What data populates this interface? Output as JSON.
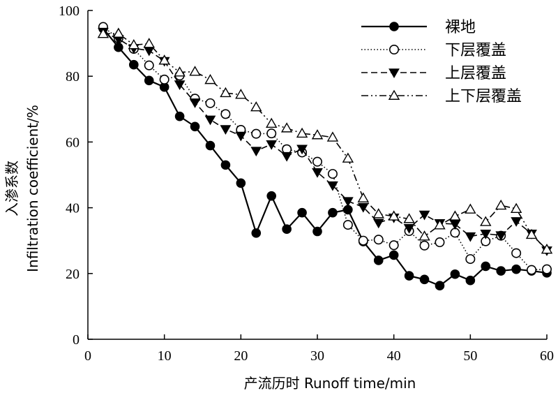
{
  "chart_data": {
    "type": "line",
    "xlabel": "产流历时  Runoff time/min",
    "ylabel_cn": "入渗系数",
    "ylabel_en": "Infiltration coefficient/%",
    "xlim": [
      0,
      60
    ],
    "ylim": [
      0,
      100
    ],
    "x_ticks": [
      0,
      10,
      20,
      30,
      40,
      50,
      60
    ],
    "y_ticks": [
      0,
      20,
      40,
      60,
      80,
      100
    ],
    "grid": false,
    "legend_position": "top-right",
    "x": [
      2,
      4,
      6,
      8,
      10,
      12,
      14,
      16,
      18,
      20,
      22,
      24,
      26,
      28,
      30,
      32,
      34,
      36,
      38,
      40,
      42,
      44,
      46,
      48,
      50,
      52,
      54,
      56,
      58,
      60
    ],
    "series": [
      {
        "name": "裸地",
        "marker": "circle-filled",
        "line": "solid",
        "values": [
          94.5,
          88.8,
          83.5,
          78.7,
          76.7,
          67.8,
          64.7,
          58.9,
          53.0,
          47.5,
          32.3,
          43.6,
          33.5,
          38.5,
          32.8,
          38.5,
          39.4,
          29.7,
          24.0,
          25.6,
          19.3,
          18.2,
          16.3,
          19.8,
          17.9,
          22.2,
          20.8,
          21.3,
          20.8,
          20.2
        ]
      },
      {
        "name": "下层覆盖",
        "marker": "circle-open",
        "line": "dotted",
        "values": [
          95.0,
          91.5,
          88.3,
          83.3,
          79.0,
          80.2,
          73.2,
          71.8,
          68.5,
          63.7,
          62.5,
          62.6,
          57.8,
          56.8,
          54.0,
          50.3,
          34.8,
          30.0,
          30.3,
          28.6,
          32.9,
          28.5,
          29.5,
          32.4,
          24.4,
          29.8,
          31.5,
          26.2,
          21.1,
          21.3
        ]
      },
      {
        "name": "上层覆盖",
        "marker": "triangle-down-filled",
        "line": "dashed",
        "values": [
          93.5,
          91.3,
          88.5,
          87.8,
          84.6,
          77.5,
          72.0,
          66.8,
          63.9,
          61.9,
          57.3,
          59.3,
          55.7,
          57.9,
          50.8,
          46.8,
          42.0,
          40.2,
          35.4,
          37.0,
          33.8,
          37.9,
          35.3,
          35.0,
          31.3,
          32.1,
          31.6,
          35.9,
          32.1,
          27.0
        ]
      },
      {
        "name": "上下层覆盖",
        "marker": "triangle-up-open",
        "line": "dash-dot-dot",
        "values": [
          92.9,
          93.0,
          89.5,
          89.9,
          84.8,
          81.2,
          81.4,
          78.9,
          74.9,
          74.4,
          70.6,
          65.6,
          64.2,
          62.6,
          62.1,
          61.4,
          55.0,
          42.9,
          38.1,
          37.4,
          36.6,
          31.3,
          34.7,
          37.4,
          39.5,
          35.7,
          40.7,
          39.7,
          31.8,
          27.3
        ]
      }
    ]
  }
}
